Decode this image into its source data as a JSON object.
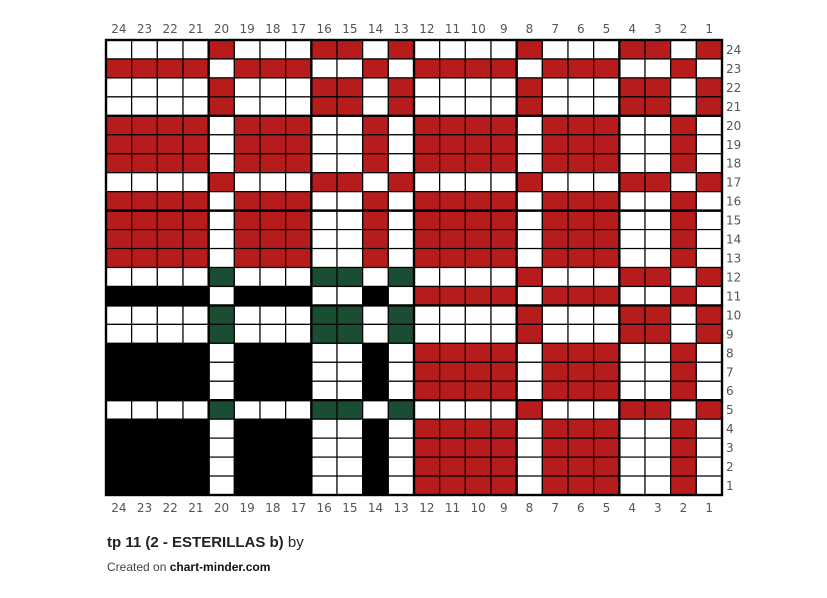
{
  "grid": {
    "columns": 24,
    "rows": 24,
    "legend": {
      "W": "#ffffff",
      "R": "#b71c1c",
      "G": "#1b4d32",
      "B": "#000000"
    },
    "cells_top_to_bottom": {
      "24": "WWWWRWWWRRWRWWWWRWWWRRWR",
      "23": "RRRRWRRRWWRWRRRRWRRRWWRW",
      "22": "WWWWRWWWRRWRWWWWRWWWRRWR",
      "21": "WWWWRWWWRRWRWWWWRWWWRRWR",
      "20": "RRRRWRRRWWRWRRRRWRRRWWRW",
      "19": "RRRRWRRRWWRWRRRRWRRRWWRW",
      "18": "RRRRWRRRWWRWRRRRWRRRWWRW",
      "17": "WWWWRWWWRRWRWWWWRWWWRRWR",
      "16": "RRRRWRRRWWRWRRRRWRRRWWRW",
      "15": "RRRRWRRRWWRWRRRRWRRRWWRW",
      "14": "RRRRWRRRWWRWRRRRWRRRWWRW",
      "13": "RRRRWRRRWWRWRRRRWRRRWWRW",
      "12": "WWWWGWWWGGWGWWWWRWWWRRWR",
      "11": "BBBBWBBBWWBWRRRRWRRRWWRW",
      "10": "WWWWGWWWGGWGWWWWRWWWRRWR",
      "9": "WWWWGWWWGGWGWWWWRWWWRRWR",
      "8": "BBBBWBBBWWBWRRRRWRRRWWRW",
      "7": "BBBBWBBBWWBWRRRRWRRRWWRW",
      "6": "BBBBWBBBWWBWRRRRWRRRWWRW",
      "5": "WWWWGWWWGGWGWWWWRWWWRRWR",
      "4": "BBBBWBBBWWBWRRRRWRRRWWRW",
      "3": "BBBBWBBBWWBWRRRRWRRRWWRW",
      "2": "BBBBWBBBWWBWRRRRWRRRWWRW",
      "1": "BBBBWBBBWWBWRRRRWRRRWWRW"
    },
    "column_labels_left_to_right": [
      "24",
      "23",
      "22",
      "21",
      "20",
      "19",
      "18",
      "17",
      "16",
      "15",
      "14",
      "13",
      "12",
      "11",
      "10",
      "9",
      "8",
      "7",
      "6",
      "5",
      "4",
      "3",
      "2",
      "1"
    ],
    "row_labels_top_to_bottom": [
      "24",
      "23",
      "22",
      "21",
      "20",
      "19",
      "18",
      "17",
      "16",
      "15",
      "14",
      "13",
      "12",
      "11",
      "10",
      "9",
      "8",
      "7",
      "6",
      "5",
      "4",
      "3",
      "2",
      "1"
    ]
  },
  "footer": {
    "title": "tp 11 (2 - ESTERILLAS b)",
    "by": "by",
    "created_prefix": "Created on",
    "site": "chart-minder.com"
  }
}
